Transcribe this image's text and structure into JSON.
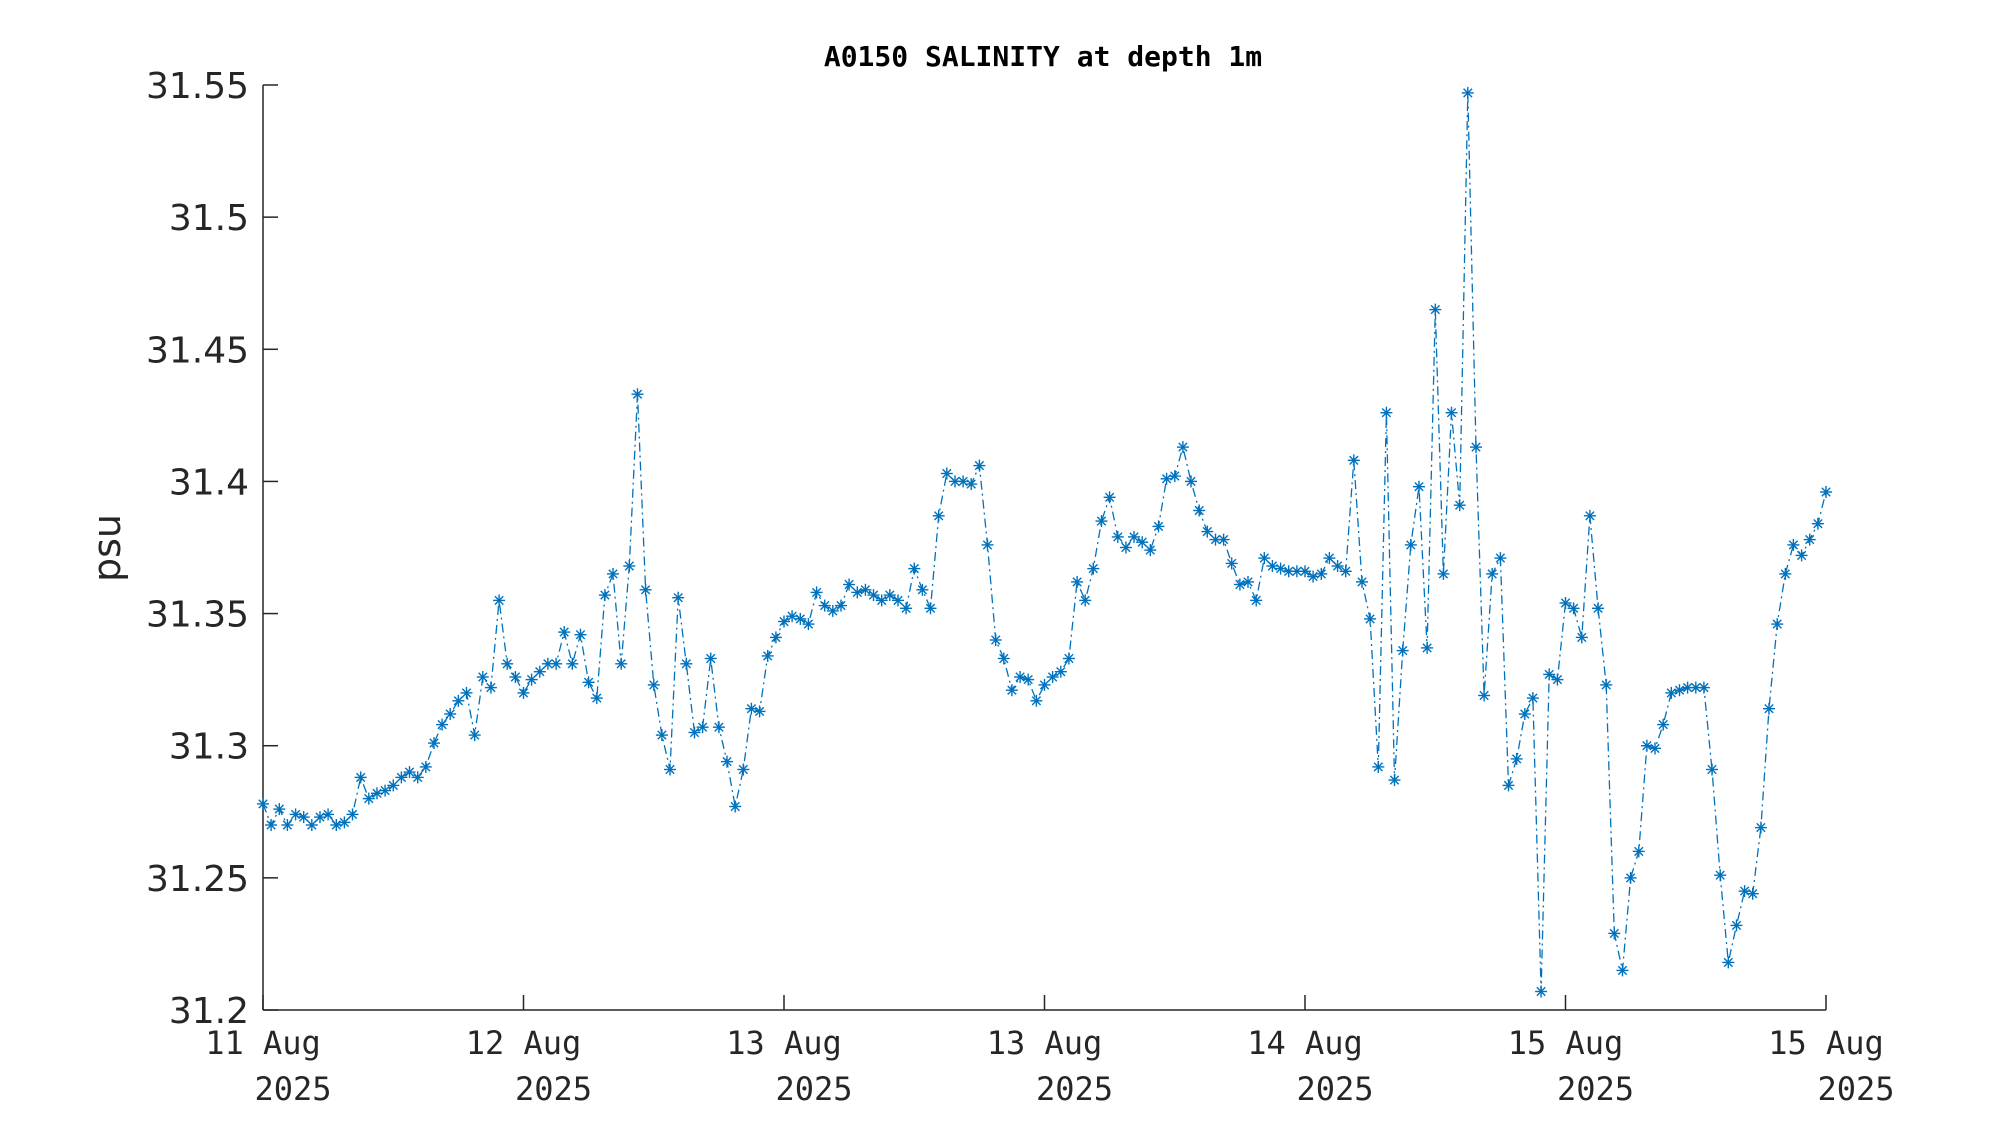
{
  "chart_data": {
    "type": "line",
    "title": "A0150 SALINITY at depth 1m",
    "ylabel": "psu",
    "xlabel": "",
    "ylim": [
      31.2,
      31.55
    ],
    "yticks": [
      "31.2",
      "31.25",
      "31.3",
      "31.35",
      "31.4",
      "31.45",
      "31.5",
      "31.55"
    ],
    "xticks": [
      {
        "line1": "11 Aug",
        "line2": "2025"
      },
      {
        "line1": "12 Aug",
        "line2": "2025"
      },
      {
        "line1": "13 Aug",
        "line2": "2025"
      },
      {
        "line1": "13 Aug",
        "line2": "2025"
      },
      {
        "line1": "14 Aug",
        "line2": "2025"
      },
      {
        "line1": "15 Aug",
        "line2": "2025"
      },
      {
        "line1": "15 Aug",
        "line2": "2025"
      }
    ],
    "series_color": "#0072BD",
    "line_style": "dash-dot",
    "marker": "asterisk",
    "grid": false,
    "series": [
      {
        "values": [
          31.278,
          31.27,
          31.276,
          31.27,
          31.274,
          31.273,
          31.27,
          31.273,
          31.274,
          31.27,
          31.271,
          31.274,
          31.288,
          31.28,
          31.282,
          31.283,
          31.285,
          31.288,
          31.29,
          31.288,
          31.292,
          31.301,
          31.308,
          31.312,
          31.317,
          31.32,
          31.304,
          31.326,
          31.322,
          31.355,
          31.331,
          31.326,
          31.32,
          31.325,
          31.328,
          31.331,
          31.331,
          31.343,
          31.331,
          31.342,
          31.324,
          31.318,
          31.357,
          31.365,
          31.331,
          31.368,
          31.433,
          31.359,
          31.323,
          31.304,
          31.291,
          31.356,
          31.331,
          31.305,
          31.307,
          31.333,
          31.307,
          31.294,
          31.277,
          31.291,
          31.314,
          31.313,
          31.334,
          31.341,
          31.347,
          31.349,
          31.348,
          31.346,
          31.358,
          31.353,
          31.351,
          31.353,
          31.361,
          31.358,
          31.359,
          31.357,
          31.355,
          31.357,
          31.355,
          31.352,
          31.367,
          31.359,
          31.352,
          31.387,
          31.403,
          31.4,
          31.4,
          31.399,
          31.406,
          31.376,
          31.34,
          31.333,
          31.321,
          31.326,
          31.325,
          31.317,
          31.323,
          31.326,
          31.328,
          31.333,
          31.362,
          31.355,
          31.367,
          31.385,
          31.394,
          31.379,
          31.375,
          31.379,
          31.377,
          31.374,
          31.383,
          31.401,
          31.402,
          31.413,
          31.4,
          31.389,
          31.381,
          31.378,
          31.378,
          31.369,
          31.361,
          31.362,
          31.355,
          31.371,
          31.368,
          31.367,
          31.366,
          31.366,
          31.366,
          31.364,
          31.365,
          31.371,
          31.368,
          31.366,
          31.408,
          31.362,
          31.348,
          31.292,
          31.426,
          31.287,
          31.336,
          31.376,
          31.398,
          31.337,
          31.465,
          31.365,
          31.426,
          31.391,
          31.547,
          31.413,
          31.319,
          31.365,
          31.371,
          31.285,
          31.295,
          31.312,
          31.318,
          31.207,
          31.327,
          31.325,
          31.354,
          31.352,
          31.341,
          31.387,
          31.352,
          31.323,
          31.229,
          31.215,
          31.25,
          31.26,
          31.3,
          31.299,
          31.308,
          31.32,
          31.321,
          31.322,
          31.322,
          31.322,
          31.291,
          31.251,
          31.218,
          31.232,
          31.245,
          31.244,
          31.269,
          31.314,
          31.346,
          31.365,
          31.376,
          31.372,
          31.378,
          31.384,
          31.396
        ]
      }
    ]
  }
}
